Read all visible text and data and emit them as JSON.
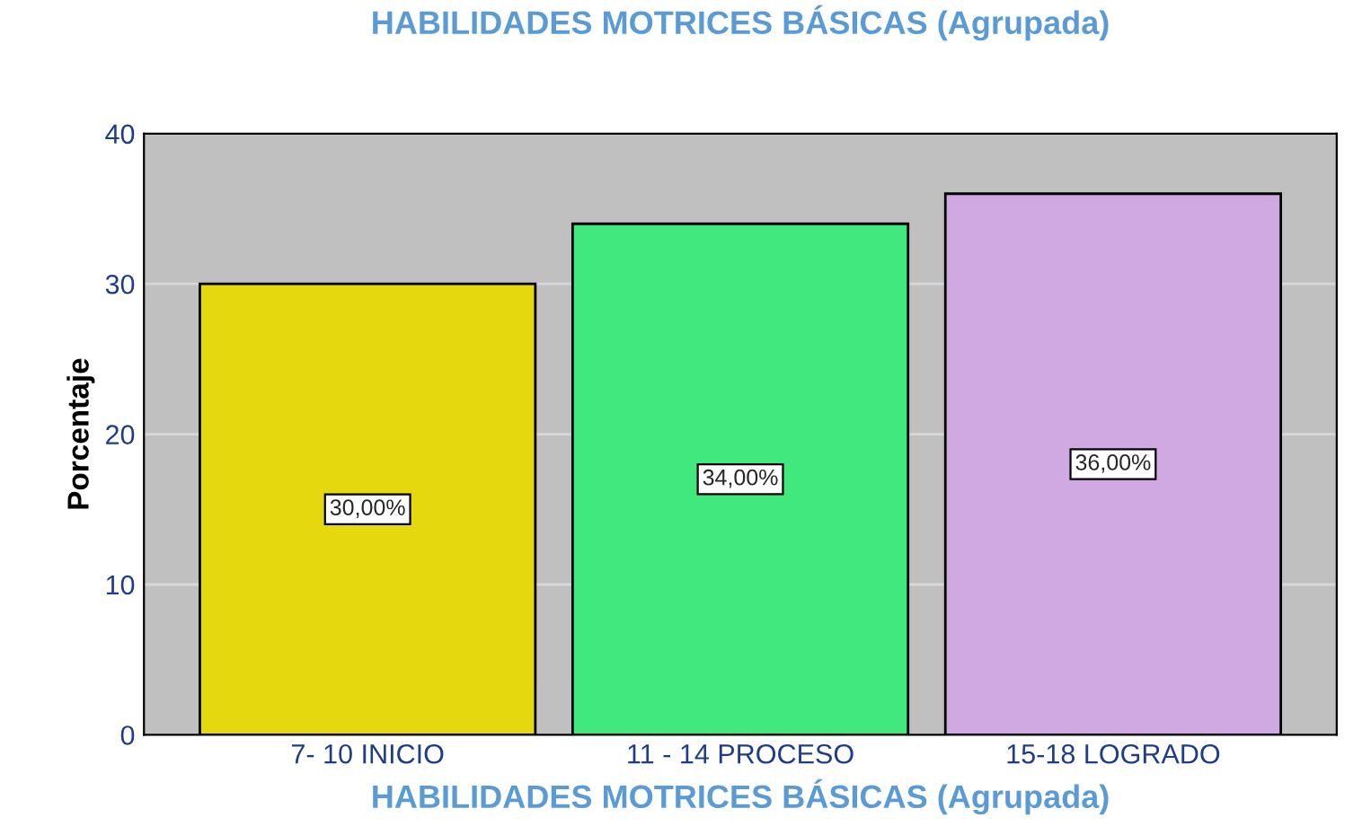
{
  "chart_data": {
    "type": "bar",
    "title": "HABILIDADES MOTRICES BÁSICAS (Agrupada)",
    "xlabel": "HABILIDADES MOTRICES BÁSICAS (Agrupada)",
    "ylabel": "Porcentaje",
    "categories": [
      "7- 10 INICIO",
      "11 - 14 PROCESO",
      "15-18 LOGRADO"
    ],
    "values": [
      30,
      34,
      36
    ],
    "colors": [
      "#e5d80f",
      "#41e87d",
      "#d0a9e2"
    ],
    "value_labels": [
      "30,00%",
      "34,00%",
      "36,00%"
    ],
    "ylim": [
      0,
      40
    ],
    "yticks": [
      0,
      10,
      20,
      30,
      40
    ],
    "grid": "y"
  }
}
